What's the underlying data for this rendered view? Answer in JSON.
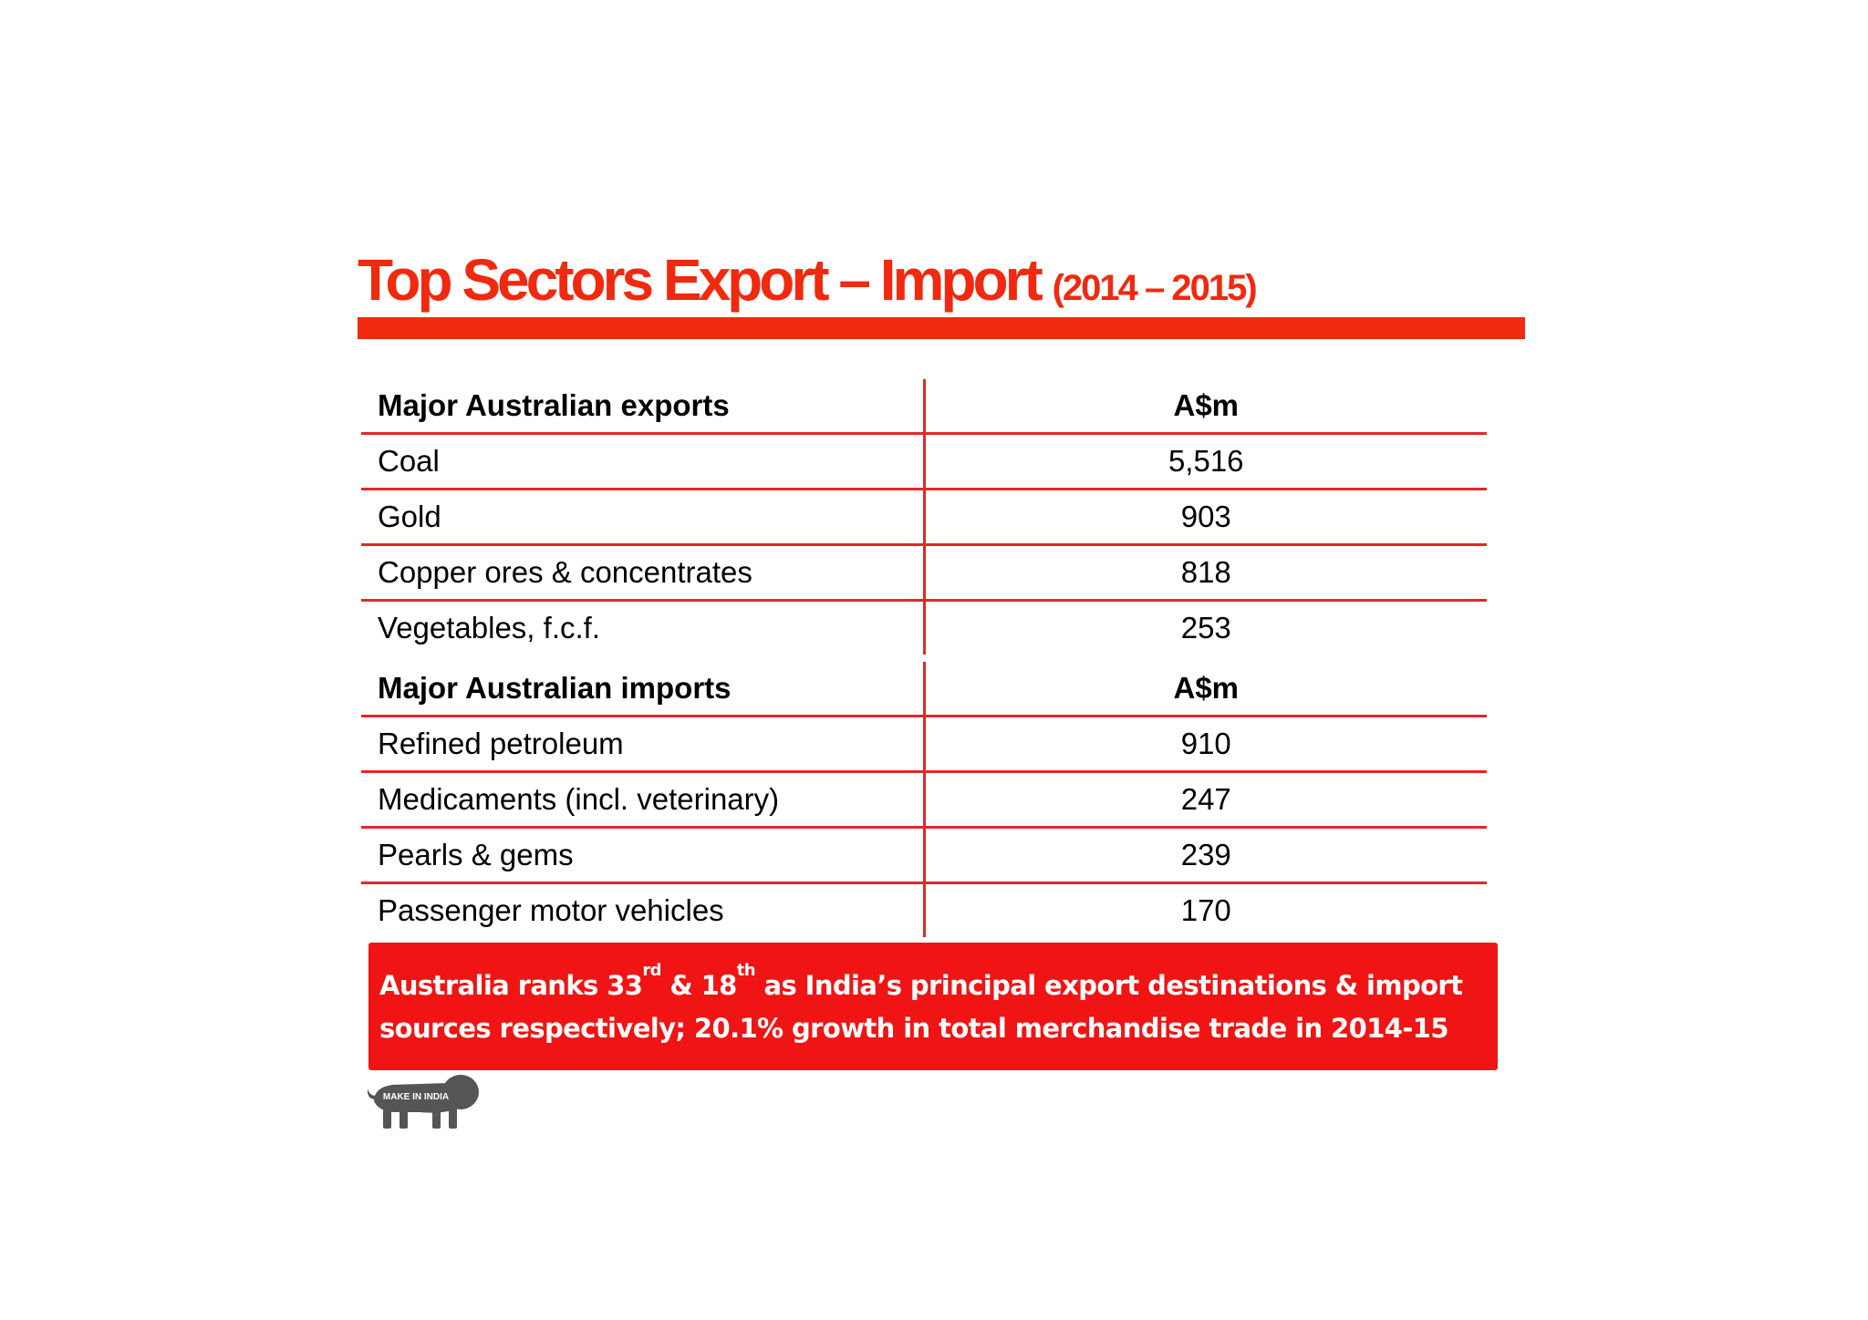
{
  "slide": {
    "title": "Top Sectors Export – Import",
    "subtitle": "(2014 – 2015)"
  },
  "exports": {
    "header": {
      "label": "Major Australian exports",
      "unit": "A$m"
    },
    "rows": [
      {
        "item": "Coal",
        "value": "5,516"
      },
      {
        "item": "Gold",
        "value": "903"
      },
      {
        "item": "Copper ores & concentrates",
        "value": "818"
      },
      {
        "item": "Vegetables, f.c.f.",
        "value": "253"
      }
    ]
  },
  "imports": {
    "header": {
      "label": "Major Australian imports",
      "unit": "A$m"
    },
    "rows": [
      {
        "item": "Refined petroleum",
        "value": "910"
      },
      {
        "item": "Medicaments (incl. veterinary)",
        "value": "247"
      },
      {
        "item": "Pearls & gems",
        "value": "239"
      },
      {
        "item": "Passenger motor vehicles",
        "value": "170"
      }
    ]
  },
  "callout": {
    "p1": "Australia ranks 33",
    "sup1": "rd",
    "p2": " & 18",
    "sup2": "th",
    "p3": " as India’s principal export destinations & import",
    "line2": "sources respectively; 20.1% growth in total merchandise trade in 2014-15"
  },
  "logo": {
    "text": "MAKE IN INDIA",
    "icon": "lion-icon"
  },
  "colors": {
    "accent": "#f0290f",
    "callout_bg": "#f01414",
    "rule": "#e0282a"
  }
}
